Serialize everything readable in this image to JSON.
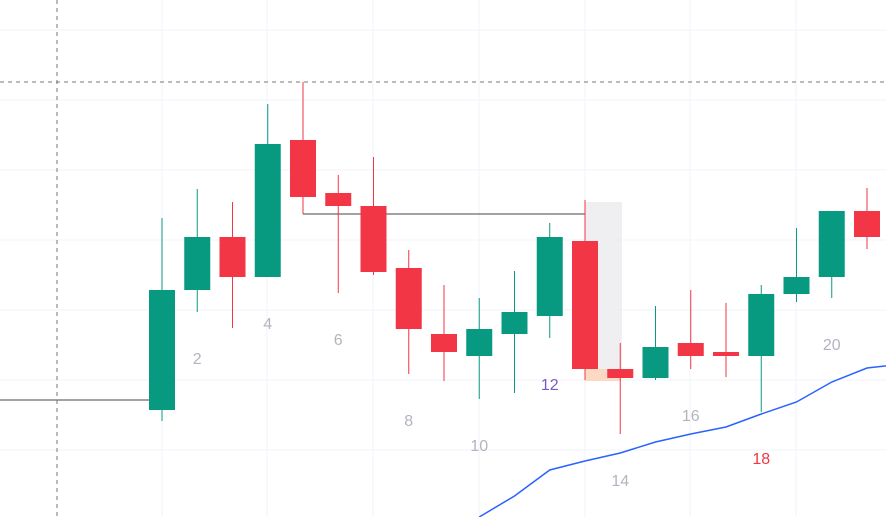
{
  "chart_data": {
    "type": "candlestick",
    "open": [
      107,
      227,
      280,
      240,
      377,
      324,
      311,
      249,
      183,
      161,
      183,
      201,
      276,
      148,
      139,
      174,
      165,
      161,
      223,
      240,
      306
    ],
    "close": [
      227,
      280,
      240,
      373,
      320,
      311,
      245,
      188,
      165,
      188,
      205,
      280,
      148,
      139,
      170,
      161,
      161,
      223,
      240,
      306,
      280
    ],
    "high": [
      299,
      328,
      315,
      413,
      435,
      342,
      360,
      267,
      232,
      219,
      246,
      294,
      317,
      174,
      211,
      227,
      214,
      232,
      289,
      306,
      329
    ],
    "low": [
      96,
      205,
      189,
      240,
      303,
      224,
      242,
      143,
      136,
      118,
      124,
      179,
      137,
      83,
      137,
      148,
      140,
      105,
      215,
      219,
      268
    ],
    "up_color": "#089981",
    "down_color": "#f23645",
    "ylim": [
      0,
      517
    ],
    "line": {
      "color": "#2962ff",
      "x": [
        9,
        10,
        11,
        12,
        13,
        14,
        15,
        16,
        17,
        18,
        19,
        20,
        21
      ],
      "values": [
        0,
        21,
        47,
        56,
        64,
        75,
        83,
        90,
        103,
        115,
        135,
        149,
        153
      ]
    },
    "annotations": [
      {
        "text": "2",
        "color": "#b2b5be"
      },
      {
        "text": "4",
        "color": "#b2b5be"
      },
      {
        "text": "6",
        "color": "#b2b5be"
      },
      {
        "text": "8",
        "color": "#b2b5be"
      },
      {
        "text": "10",
        "color": "#b2b5be"
      },
      {
        "text": "12",
        "color": "#7e57c2"
      },
      {
        "text": "14",
        "color": "#b2b5be"
      },
      {
        "text": "16",
        "color": "#b2b5be"
      },
      {
        "text": "18",
        "color": "#f23645"
      },
      {
        "text": "20",
        "color": "#b2b5be"
      }
    ]
  }
}
